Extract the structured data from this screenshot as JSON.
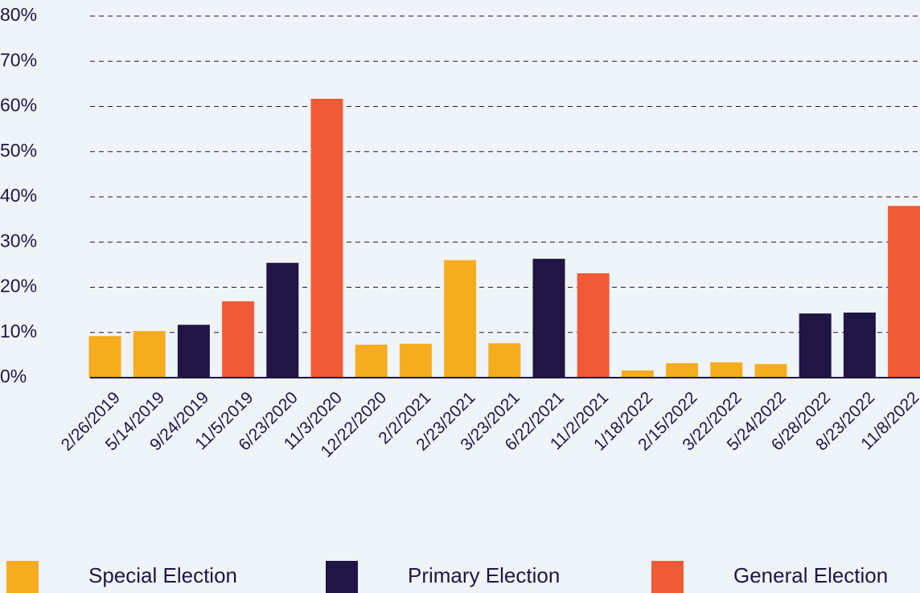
{
  "chart_data": {
    "type": "bar",
    "categories": [
      "2/26/2019",
      "5/14/2019",
      "9/24/2019",
      "11/5/2019",
      "6/23/2020",
      "11/3/2020",
      "12/22/2020",
      "2/2/2021",
      "2/23/2021",
      "3/23/2021",
      "6/22/2021",
      "11/2/2021",
      "1/18/2022",
      "2/15/2022",
      "3/22/2022",
      "5/24/2022",
      "6/28/2022",
      "8/23/2022",
      "11/8/2022"
    ],
    "series": [
      {
        "name": "Special Election",
        "color": "#f5ad1f",
        "values": [
          9.2,
          10.3,
          null,
          null,
          null,
          null,
          7.3,
          7.5,
          26,
          7.6,
          null,
          null,
          1.6,
          3.2,
          3.4,
          3.0,
          null,
          null,
          null
        ]
      },
      {
        "name": "Primary Election",
        "color": "#1f1646",
        "values": [
          null,
          null,
          11.7,
          null,
          25.4,
          null,
          null,
          null,
          null,
          null,
          26.3,
          null,
          null,
          null,
          null,
          null,
          14.2,
          14.4,
          null
        ]
      },
      {
        "name": "General Election",
        "color": "#f15a36",
        "values": [
          null,
          null,
          null,
          16.9,
          null,
          61.7,
          null,
          null,
          null,
          null,
          null,
          23.1,
          null,
          null,
          null,
          null,
          null,
          null,
          38.0
        ]
      }
    ],
    "ylim": [
      0,
      80
    ],
    "yticks": [
      {
        "value": 0,
        "label": "0%"
      },
      {
        "value": 10,
        "label": "10%"
      },
      {
        "value": 20,
        "label": "20%"
      },
      {
        "value": 30,
        "label": "30%"
      },
      {
        "value": 40,
        "label": "40%"
      },
      {
        "value": 50,
        "label": "50%"
      },
      {
        "value": 60,
        "label": "60%"
      },
      {
        "value": 70,
        "label": "70%"
      },
      {
        "value": 80,
        "label": "80%"
      }
    ],
    "grid": true,
    "legend": "bottom"
  }
}
